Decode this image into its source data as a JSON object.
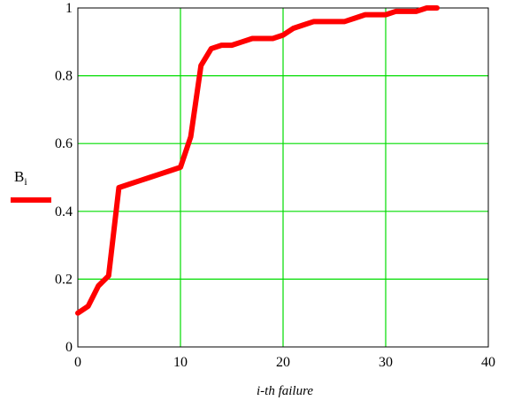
{
  "chart_data": {
    "type": "line",
    "xlabel": "i-th failure",
    "ylabel": "",
    "xlim": [
      0,
      40
    ],
    "ylim": [
      0,
      1
    ],
    "grid": true,
    "grid_color": "#00dd00",
    "x_ticks": [
      0,
      10,
      20,
      30,
      40
    ],
    "y_ticks": [
      0,
      0.2,
      0.4,
      0.6,
      0.8,
      1
    ],
    "x_tick_labels": [
      "0",
      "10",
      "20",
      "30",
      "40"
    ],
    "y_tick_labels": [
      "0",
      "0.2",
      "0.4",
      "0.6",
      "0.8",
      "1"
    ],
    "legend_position": "left",
    "series": [
      {
        "name": "B",
        "name_subscript": "i",
        "color": "#ff0000",
        "x": [
          0,
          1,
          2,
          3,
          4,
          5,
          6,
          7,
          8,
          9,
          10,
          11,
          12,
          13,
          14,
          15,
          16,
          17,
          18,
          19,
          20,
          21,
          22,
          23,
          24,
          25,
          26,
          27,
          28,
          29,
          30,
          31,
          32,
          33,
          34,
          35
        ],
        "y": [
          0.1,
          0.12,
          0.18,
          0.21,
          0.47,
          0.48,
          0.49,
          0.5,
          0.51,
          0.52,
          0.53,
          0.62,
          0.83,
          0.88,
          0.89,
          0.89,
          0.9,
          0.91,
          0.91,
          0.91,
          0.92,
          0.94,
          0.95,
          0.96,
          0.96,
          0.96,
          0.96,
          0.97,
          0.98,
          0.98,
          0.98,
          0.99,
          0.99,
          0.99,
          1.0,
          1.0
        ]
      }
    ]
  }
}
